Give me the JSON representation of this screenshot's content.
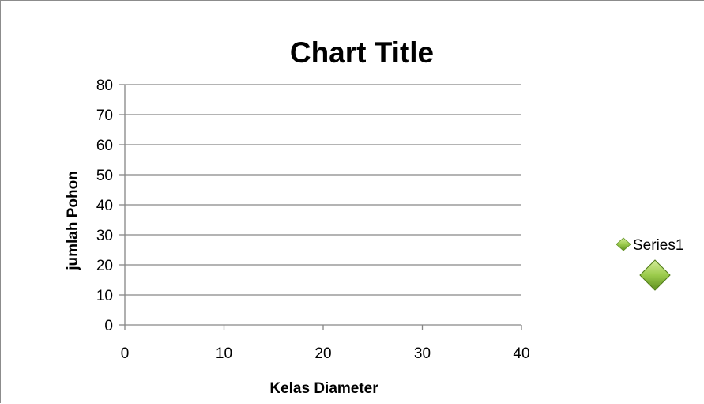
{
  "chart_data": {
    "type": "scatter",
    "title": "Chart Title",
    "xlabel": "Kelas Diameter",
    "ylabel": "jumlah Pohon",
    "xlim": [
      0,
      40
    ],
    "ylim": [
      0,
      80
    ],
    "x_ticks": [
      0,
      10,
      20,
      30,
      40
    ],
    "y_ticks": [
      0,
      10,
      20,
      30,
      40,
      50,
      60,
      70,
      80
    ],
    "grid": "horizontal",
    "legend_position": "right",
    "series": [
      {
        "name": "Series1",
        "marker": "diamond",
        "color": "#8dc63f",
        "points": []
      }
    ]
  }
}
